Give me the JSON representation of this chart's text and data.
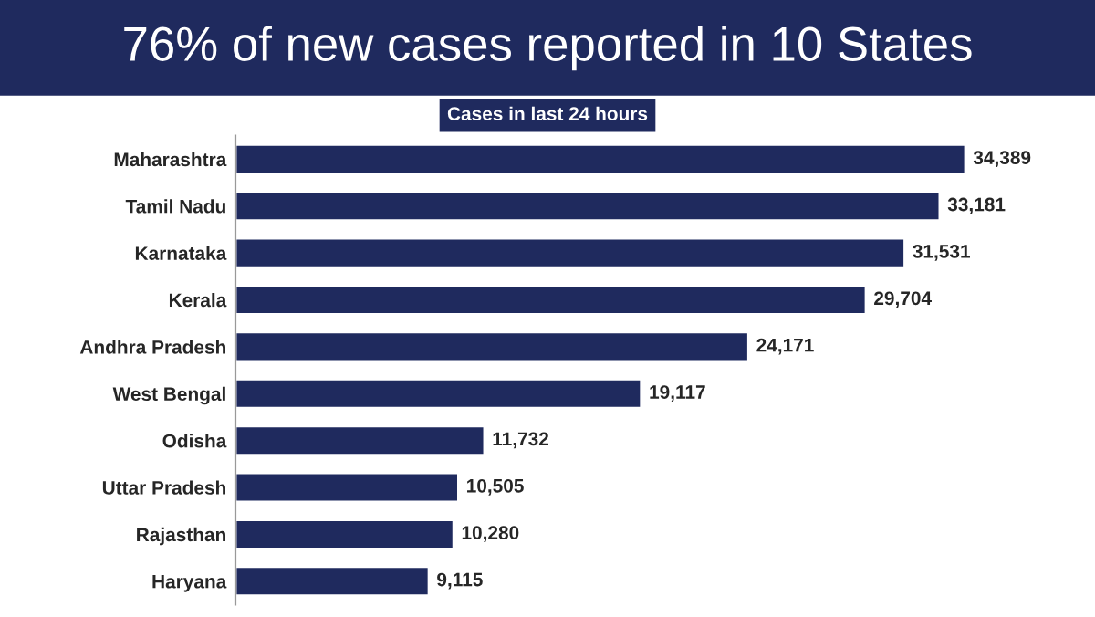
{
  "chart_data": {
    "type": "bar",
    "orientation": "horizontal",
    "title": "76% of new cases reported in 10 States",
    "subtitle": "Cases in last 24 hours",
    "categories": [
      "Maharashtra",
      "Tamil Nadu",
      "Karnataka",
      "Kerala",
      "Andhra Pradesh",
      "West Bengal",
      "Odisha",
      "Uttar Pradesh",
      "Rajasthan",
      "Haryana"
    ],
    "values": [
      34389,
      33181,
      31531,
      29704,
      24171,
      19117,
      11732,
      10505,
      10280,
      9115
    ],
    "value_labels": [
      "34,389",
      "33,181",
      "31,531",
      "29,704",
      "24,171",
      "19,117",
      "11,732",
      "10,505",
      "10,280",
      "9,115"
    ],
    "color": "#1f2a5e",
    "grid": false,
    "legend": false
  }
}
